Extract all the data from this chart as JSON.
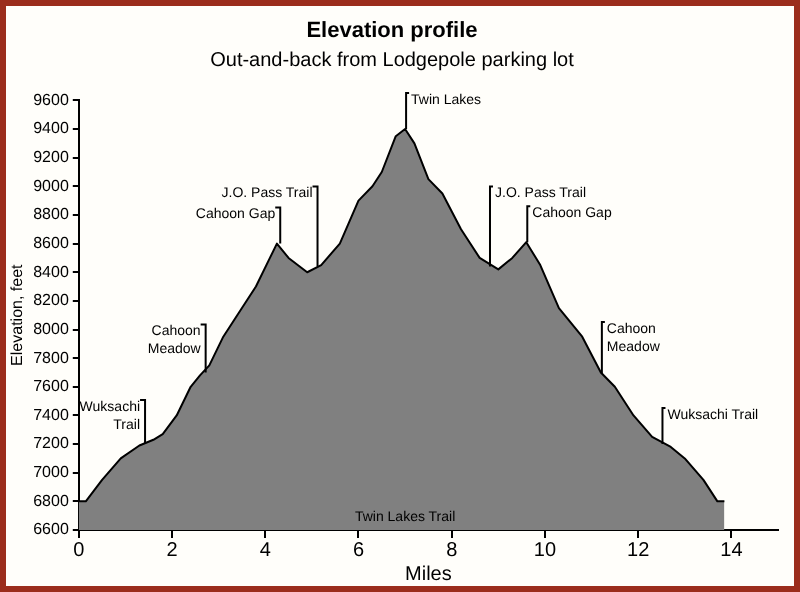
{
  "chart_data": {
    "type": "area",
    "title": "Elevation profile",
    "subtitle": "Out-and-back from Lodgepole parking lot",
    "xlabel": "Miles",
    "ylabel": "Elevation, feet",
    "x": [
      0,
      0.15,
      0.5,
      0.9,
      1.3,
      1.6,
      1.8,
      2.1,
      2.4,
      2.6,
      2.8,
      3.1,
      3.5,
      3.8,
      4.1,
      4.25,
      4.5,
      4.9,
      5.2,
      5.6,
      6.0,
      6.3,
      6.5,
      6.8,
      7.0,
      7.2,
      7.5,
      7.8,
      8.2,
      8.6,
      9.0,
      9.3,
      9.6,
      9.9,
      10.3,
      10.8,
      11.2,
      11.5,
      11.9,
      12.3,
      12.7,
      13.0,
      13.4,
      13.7,
      13.85
    ],
    "values": [
      6800,
      6800,
      6950,
      7100,
      7190,
      7230,
      7270,
      7400,
      7600,
      7680,
      7750,
      7950,
      8150,
      8300,
      8500,
      8600,
      8500,
      8400,
      8450,
      8600,
      8900,
      9000,
      9100,
      9350,
      9400,
      9300,
      9050,
      8950,
      8700,
      8500,
      8420,
      8500,
      8610,
      8450,
      8150,
      7950,
      7700,
      7600,
      7400,
      7250,
      7180,
      7100,
      6950,
      6800,
      6800
    ],
    "color": "#808080",
    "xlim": [
      0,
      15
    ],
    "xticks": [
      0,
      2,
      4,
      6,
      8,
      10,
      12,
      14
    ],
    "ylim": [
      6600,
      9600
    ],
    "yticks": [
      6600,
      6800,
      7000,
      7200,
      7400,
      7600,
      7800,
      8000,
      8200,
      8400,
      8600,
      8800,
      9000,
      9200,
      9400,
      9600
    ],
    "grid": false,
    "legend": false,
    "annotations": [
      {
        "text": "Wuksachi Trail",
        "x": 1.4,
        "y": 7200
      },
      {
        "text": "Cahoon Meadow",
        "x": 2.7,
        "y": 7700
      },
      {
        "text": "Cahoon Gap",
        "x": 4.3,
        "y": 8600
      },
      {
        "text": "J.O. Pass Trail",
        "x": 5.1,
        "y": 8440
      },
      {
        "text": "Twin Lakes",
        "x": 7.0,
        "y": 9400
      },
      {
        "text": "J.O. Pass Trail",
        "x": 8.8,
        "y": 8440
      },
      {
        "text": "Cahoon Gap",
        "x": 9.6,
        "y": 8610
      },
      {
        "text": "Cahoon Meadow",
        "x": 11.2,
        "y": 7690
      },
      {
        "text": "Wuksachi Trail",
        "x": 12.5,
        "y": 7200
      },
      "Twin Lakes Trail"
    ]
  }
}
